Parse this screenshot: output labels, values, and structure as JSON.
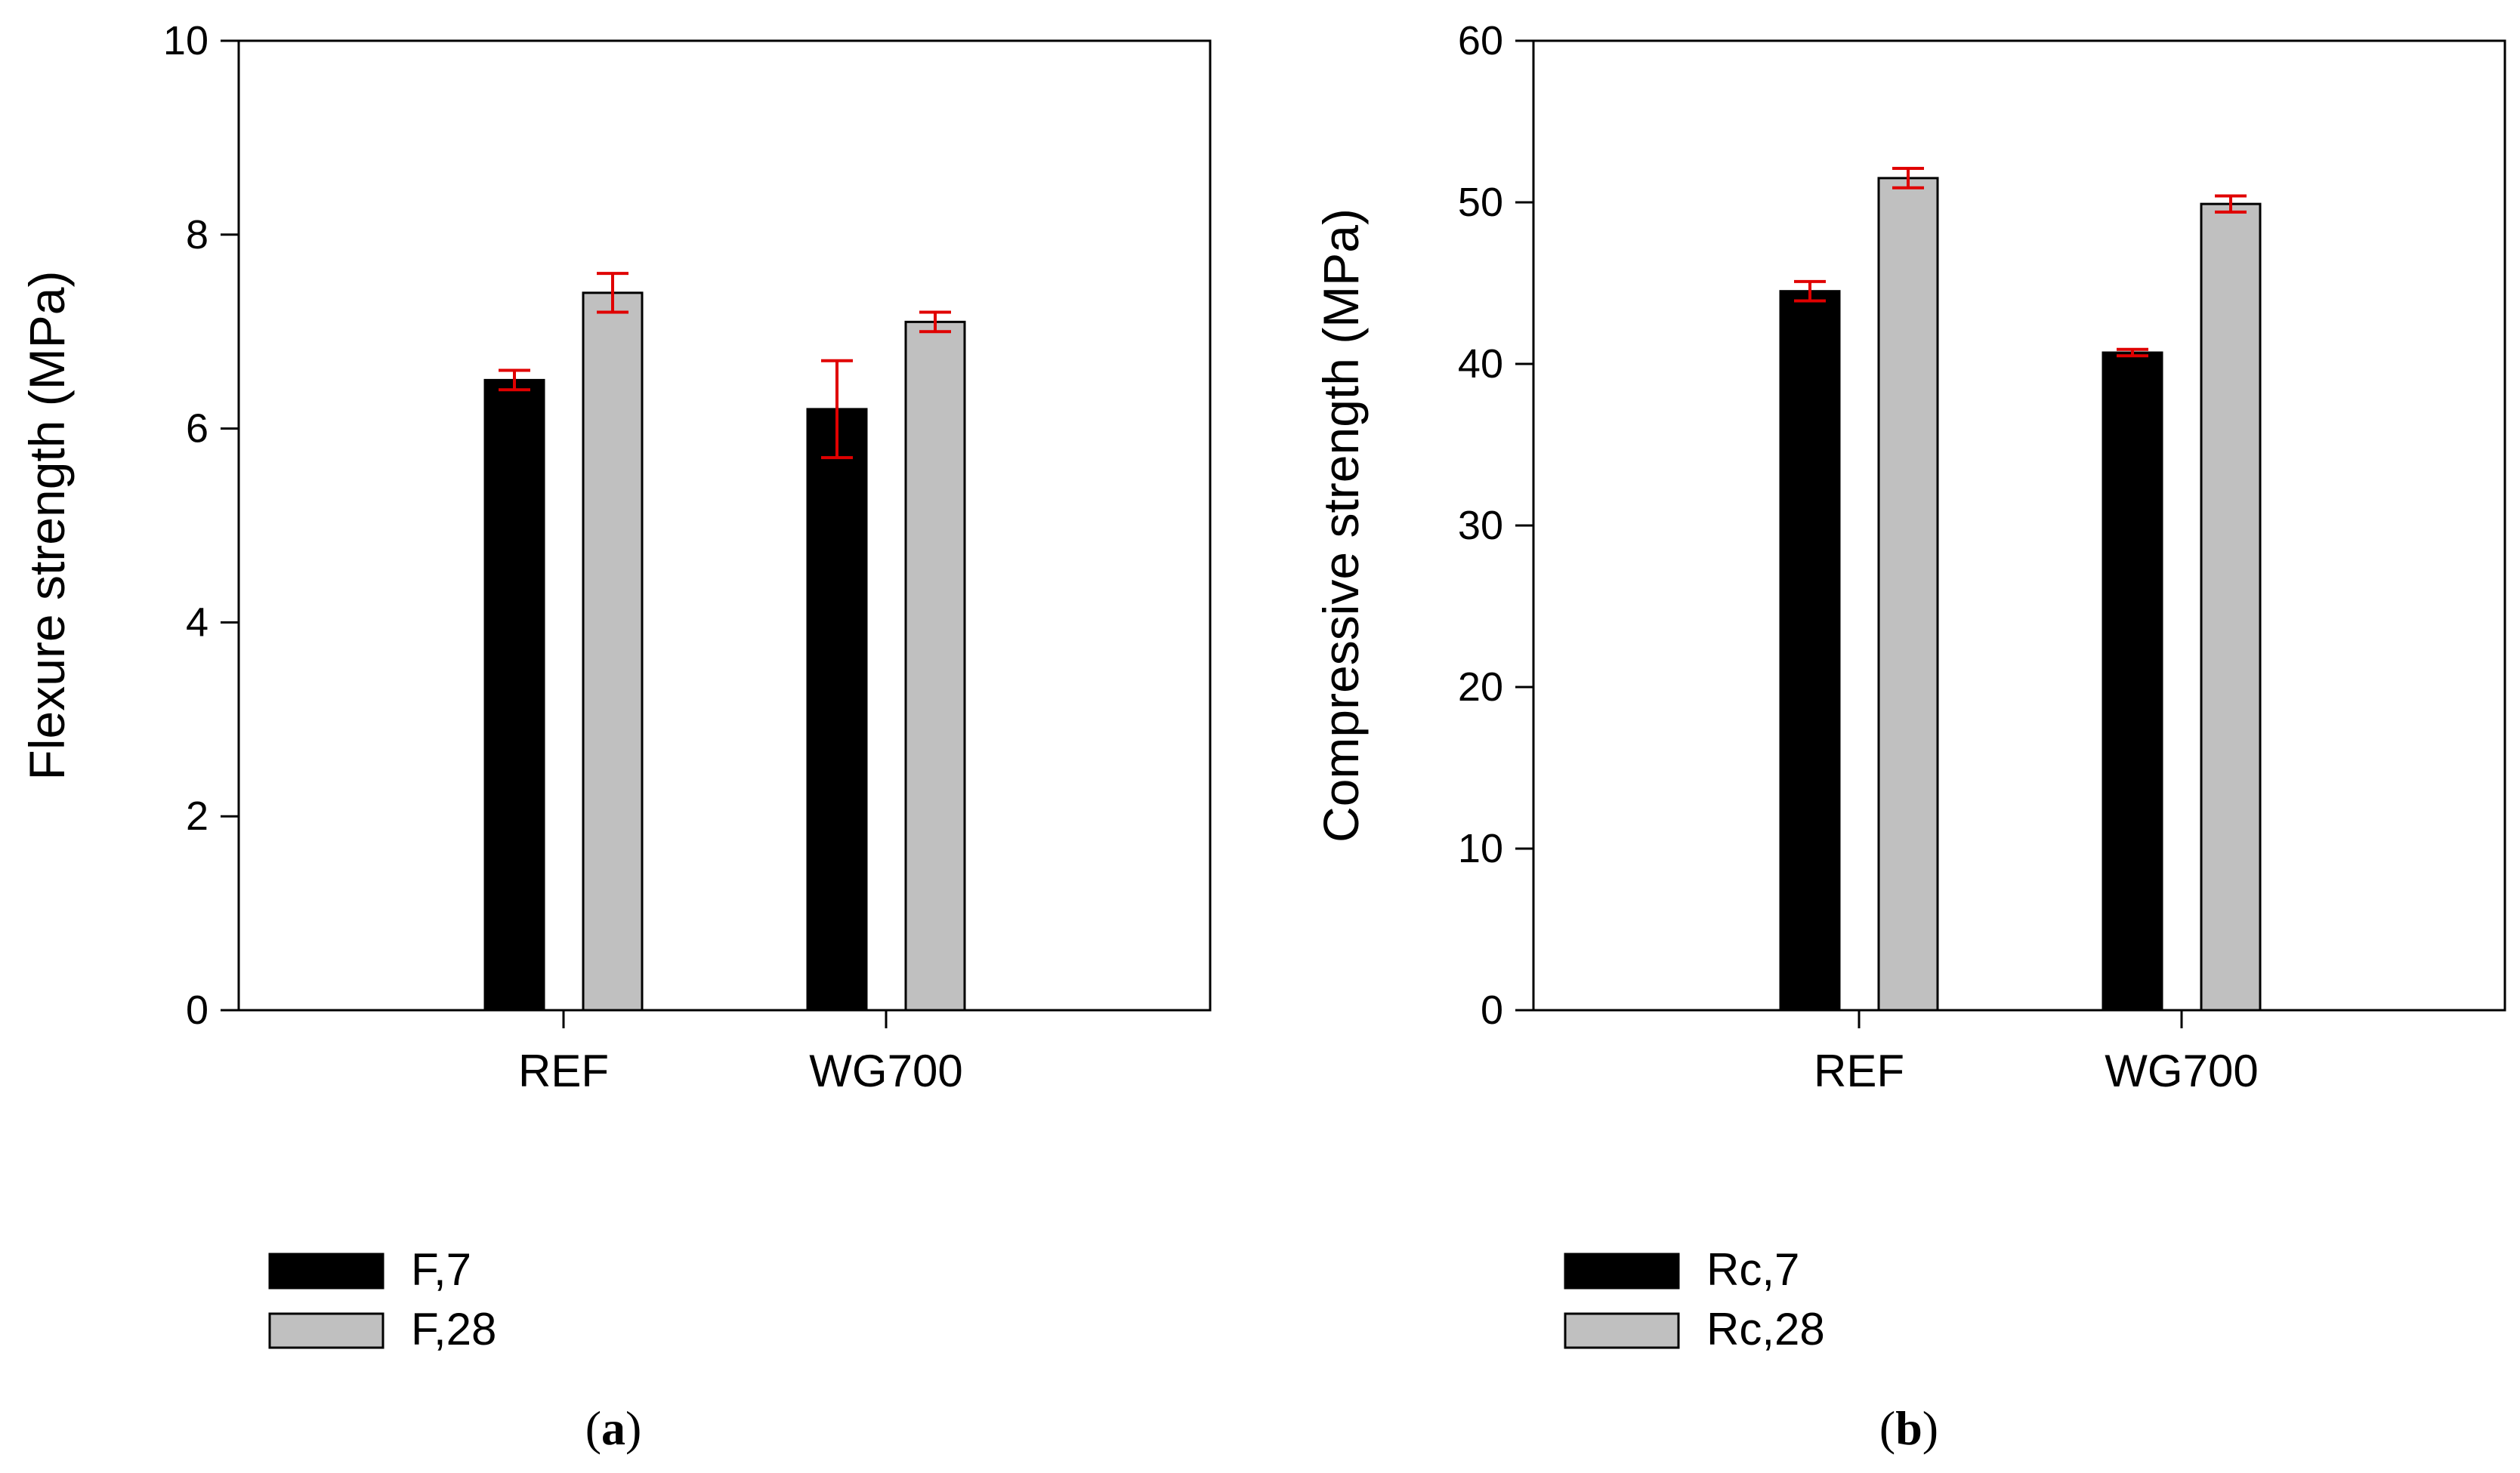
{
  "chart_data": [
    {
      "type": "bar",
      "panel_label": "(a)",
      "panel_letter": "a",
      "categories": [
        "REF",
        "WG700"
      ],
      "series": [
        {
          "name": "F,7",
          "color": "#000000",
          "values": [
            6.5,
            6.2
          ],
          "errors": [
            0.1,
            0.5
          ]
        },
        {
          "name": "F,28",
          "color": "#c0c0c0",
          "values": [
            7.4,
            7.1
          ],
          "errors": [
            0.2,
            0.1
          ]
        }
      ],
      "ylabel": "Flexure strength (MPa)",
      "xlabel": "",
      "ylim": [
        0,
        10
      ],
      "yticks": [
        0,
        2,
        4,
        6,
        8,
        10
      ],
      "error_color": "#e00000",
      "legend_position": "below"
    },
    {
      "type": "bar",
      "panel_label": "(b)",
      "panel_letter": "b",
      "categories": [
        "REF",
        "WG700"
      ],
      "series": [
        {
          "name": "Rc,7",
          "color": "#000000",
          "values": [
            44.5,
            40.7
          ],
          "errors": [
            0.6,
            0.2
          ]
        },
        {
          "name": "Rc,28",
          "color": "#c0c0c0",
          "values": [
            51.5,
            49.9
          ],
          "errors": [
            0.6,
            0.5
          ]
        }
      ],
      "ylabel": "Compressive strength (MPa)",
      "xlabel": "",
      "ylim": [
        0,
        60
      ],
      "yticks": [
        0,
        10,
        20,
        30,
        40,
        50,
        60
      ],
      "error_color": "#e00000",
      "legend_position": "below"
    }
  ]
}
